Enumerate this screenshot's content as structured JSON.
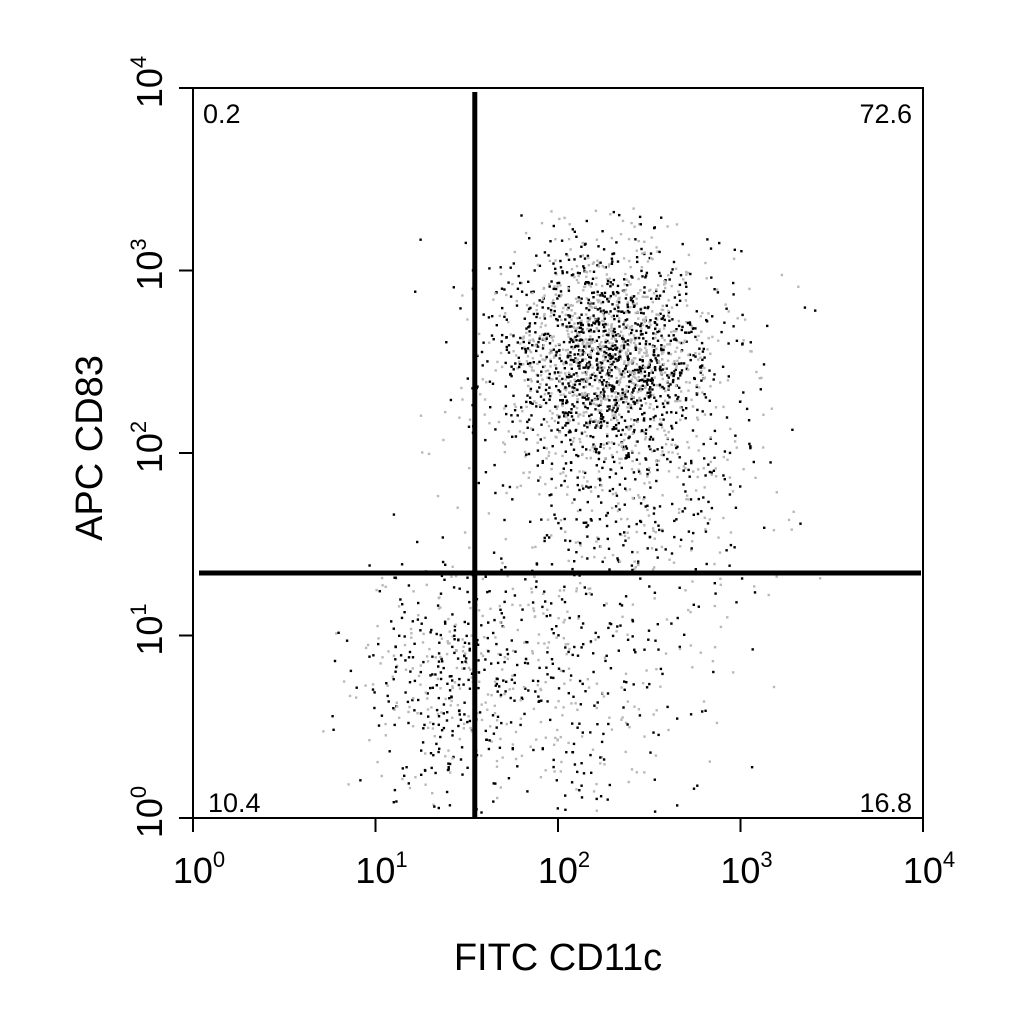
{
  "chart_data": {
    "type": "scatter",
    "title": "",
    "xlabel": "FITC CD11c",
    "ylabel": "APC CD83",
    "x_scale": "log",
    "y_scale": "log",
    "xlim": [
      1,
      10000
    ],
    "ylim": [
      1,
      10000
    ],
    "x_ticks": [
      {
        "base": "10",
        "exp": "0"
      },
      {
        "base": "10",
        "exp": "1"
      },
      {
        "base": "10",
        "exp": "2"
      },
      {
        "base": "10",
        "exp": "3"
      },
      {
        "base": "10",
        "exp": "4"
      }
    ],
    "y_ticks": [
      {
        "base": "10",
        "exp": "0"
      },
      {
        "base": "10",
        "exp": "1"
      },
      {
        "base": "10",
        "exp": "2"
      },
      {
        "base": "10",
        "exp": "3"
      },
      {
        "base": "10",
        "exp": "4"
      }
    ],
    "gates": {
      "x": 35,
      "y": 22
    },
    "quadrants": {
      "upper_left": "0.2",
      "upper_right": "72.6",
      "lower_left": "10.4",
      "lower_right": "16.8"
    },
    "grid": false,
    "legend": "none",
    "populations": [
      {
        "x_center": 180,
        "y_center": 350,
        "x_spread": 0.3,
        "y_spread": 0.3,
        "share": 0.6
      },
      {
        "x_center": 250,
        "y_center": 70,
        "x_spread": 0.38,
        "y_spread": 0.45,
        "share": 0.17
      },
      {
        "x_center": 25,
        "y_center": 6,
        "x_spread": 0.25,
        "y_spread": 0.32,
        "share": 0.13
      },
      {
        "x_center": 120,
        "y_center": 5,
        "x_spread": 0.35,
        "y_spread": 0.4,
        "share": 0.1
      }
    ],
    "colors": {
      "dot_dark": "#000000",
      "dot_light": "#b8b8b8",
      "gate_line": "#000000"
    }
  }
}
